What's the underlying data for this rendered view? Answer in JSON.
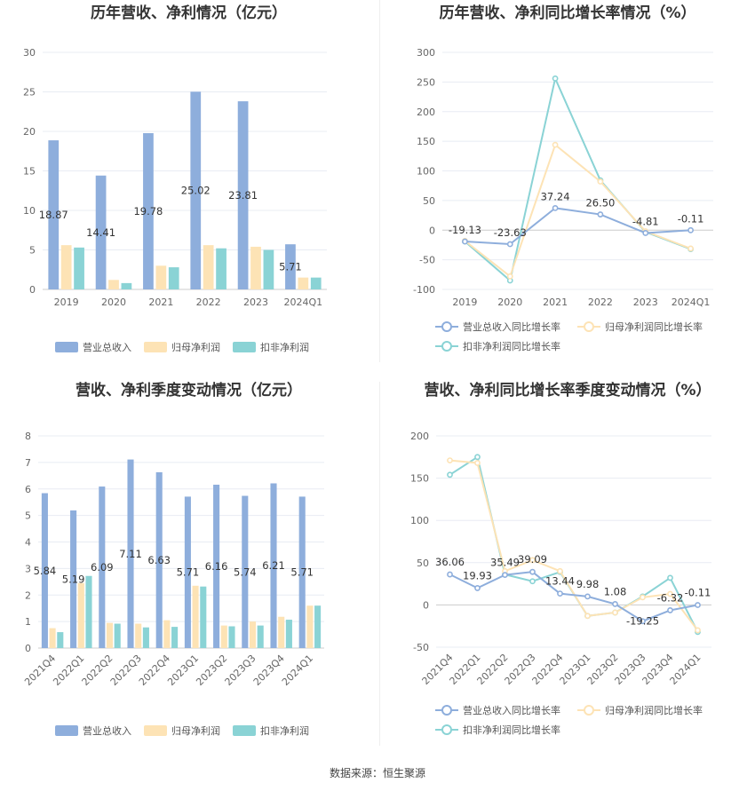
{
  "colors": {
    "revenue": "#8eaedc",
    "net_profit": "#fde3b5",
    "deducted_profit": "#8ad3d5",
    "rev_line": "#8eaedc",
    "np_line": "#fde3b5",
    "dp_line": "#8ad3d5"
  },
  "source_text": "数据来源：恒生聚源",
  "chart_data": [
    {
      "type": "bar",
      "title": "历年营收、净利情况（亿元）",
      "categories": [
        "2019",
        "2020",
        "2021",
        "2022",
        "2023",
        "2024Q1"
      ],
      "ylim": [
        0,
        30
      ],
      "yticks": [
        0,
        5,
        10,
        15,
        20,
        25,
        30
      ],
      "series": [
        {
          "name": "营业总收入",
          "values": [
            18.87,
            14.41,
            19.78,
            25.02,
            23.81,
            5.71
          ],
          "labels": [
            "18.87",
            "14.41",
            "19.78",
            "25.02",
            "23.81",
            "5.71"
          ]
        },
        {
          "name": "归母净利润",
          "values": [
            5.6,
            1.2,
            3.0,
            5.6,
            5.4,
            1.5
          ]
        },
        {
          "name": "扣非净利润",
          "values": [
            5.3,
            0.8,
            2.8,
            5.2,
            5.0,
            1.5
          ]
        }
      ],
      "legend": "bottom"
    },
    {
      "type": "line",
      "title": "历年营收、净利同比增长率情况（%）",
      "categories": [
        "2019",
        "2020",
        "2021",
        "2022",
        "2023",
        "2024Q1"
      ],
      "ylim": [
        -100,
        300
      ],
      "yticks": [
        -100,
        -50,
        0,
        50,
        100,
        150,
        200,
        250,
        300
      ],
      "series": [
        {
          "name": "营业总收入同比增长率",
          "values": [
            -19.13,
            -23.63,
            37.24,
            26.5,
            -4.81,
            -0.11
          ],
          "labels": [
            "-19.13",
            "-23.63",
            "37.24",
            "26.50",
            "-4.81",
            "-0.11"
          ]
        },
        {
          "name": "归母净利润同比增长率",
          "values": [
            -18,
            -78,
            144,
            82,
            -2,
            -31
          ]
        },
        {
          "name": "扣非净利润同比增长率",
          "values": [
            -19,
            -85,
            256,
            84,
            -3,
            -32
          ]
        }
      ],
      "legend": "bottom"
    },
    {
      "type": "bar",
      "title": "营收、净利季度变动情况（亿元）",
      "categories": [
        "2021Q4",
        "2022Q1",
        "2022Q2",
        "2022Q3",
        "2022Q4",
        "2023Q1",
        "2023Q2",
        "2023Q3",
        "2023Q4",
        "2024Q1"
      ],
      "ylim": [
        0,
        8
      ],
      "yticks": [
        0,
        1,
        2,
        3,
        4,
        5,
        6,
        7,
        8
      ],
      "series": [
        {
          "name": "营业总收入",
          "values": [
            5.84,
            5.19,
            6.09,
            7.11,
            6.63,
            5.71,
            6.16,
            5.74,
            6.21,
            5.71
          ],
          "labels": [
            "5.84",
            "5.19",
            "6.09",
            "7.11",
            "6.63",
            "5.71",
            "6.16",
            "5.74",
            "6.21",
            "5.71"
          ]
        },
        {
          "name": "归母净利润",
          "values": [
            0.75,
            2.45,
            0.95,
            0.92,
            1.05,
            2.35,
            0.85,
            1.0,
            1.18,
            1.6
          ]
        },
        {
          "name": "扣非净利润",
          "values": [
            0.6,
            2.72,
            0.92,
            0.78,
            0.8,
            2.32,
            0.82,
            0.85,
            1.07,
            1.6
          ]
        }
      ],
      "legend": "bottom"
    },
    {
      "type": "line",
      "title": "营收、净利同比增长率季度变动情况（%）",
      "categories": [
        "2021Q4",
        "2022Q1",
        "2022Q2",
        "2022Q3",
        "2022Q4",
        "2023Q1",
        "2023Q2",
        "2023Q3",
        "2023Q4",
        "2024Q1"
      ],
      "ylim": [
        -50,
        200
      ],
      "yticks": [
        -50,
        0,
        50,
        100,
        150,
        200
      ],
      "series": [
        {
          "name": "营业总收入同比增长率",
          "values": [
            36.06,
            19.93,
            35.49,
            39.09,
            13.44,
            9.98,
            1.08,
            -19.25,
            -6.32,
            -0.11
          ],
          "labels": [
            "36.06",
            "19.93",
            "35.49",
            "39.09",
            "13.44",
            "9.98",
            "1.08",
            "-19.25",
            "-6.32",
            "-0.11"
          ]
        },
        {
          "name": "归母净利润同比增长率",
          "values": [
            171,
            168,
            40,
            53,
            40,
            -13,
            -9,
            9,
            13,
            -30
          ]
        },
        {
          "name": "扣非净利润同比增长率",
          "values": [
            154,
            175,
            36,
            28,
            39,
            -13,
            -9,
            10,
            32,
            -32
          ]
        }
      ],
      "legend": "bottom"
    }
  ]
}
